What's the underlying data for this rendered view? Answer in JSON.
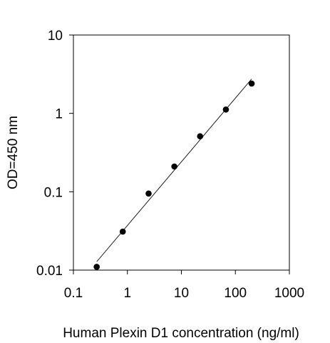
{
  "chart_data": {
    "type": "scatter",
    "xlabel": "Human Plexin D1  concentration (ng/ml)",
    "ylabel": "OD=450 nm",
    "xscale": "log",
    "yscale": "log",
    "xlim": [
      0.1,
      1000
    ],
    "ylim": [
      0.01,
      10
    ],
    "grid": false,
    "legend": "none",
    "x_ticks": [
      {
        "value": 0.1,
        "label": "0.1"
      },
      {
        "value": 1,
        "label": "1"
      },
      {
        "value": 10,
        "label": "10"
      },
      {
        "value": 100,
        "label": "100"
      },
      {
        "value": 1000,
        "label": "1000"
      }
    ],
    "y_ticks": [
      {
        "value": 0.01,
        "label": "0.01"
      },
      {
        "value": 0.1,
        "label": "0.1"
      },
      {
        "value": 1,
        "label": "1"
      },
      {
        "value": 10,
        "label": "10"
      }
    ],
    "series": [
      {
        "x": [
          0.27,
          0.82,
          2.47,
          7.41,
          22.2,
          66.7,
          200
        ],
        "y": [
          0.011,
          0.031,
          0.095,
          0.21,
          0.51,
          1.12,
          2.4
        ]
      }
    ],
    "trendline": {
      "x": [
        0.27,
        200
      ],
      "y": [
        0.0128,
        2.75
      ]
    },
    "colors": {
      "marker": "#000000",
      "line": "#000000",
      "axis": "#000000"
    }
  }
}
